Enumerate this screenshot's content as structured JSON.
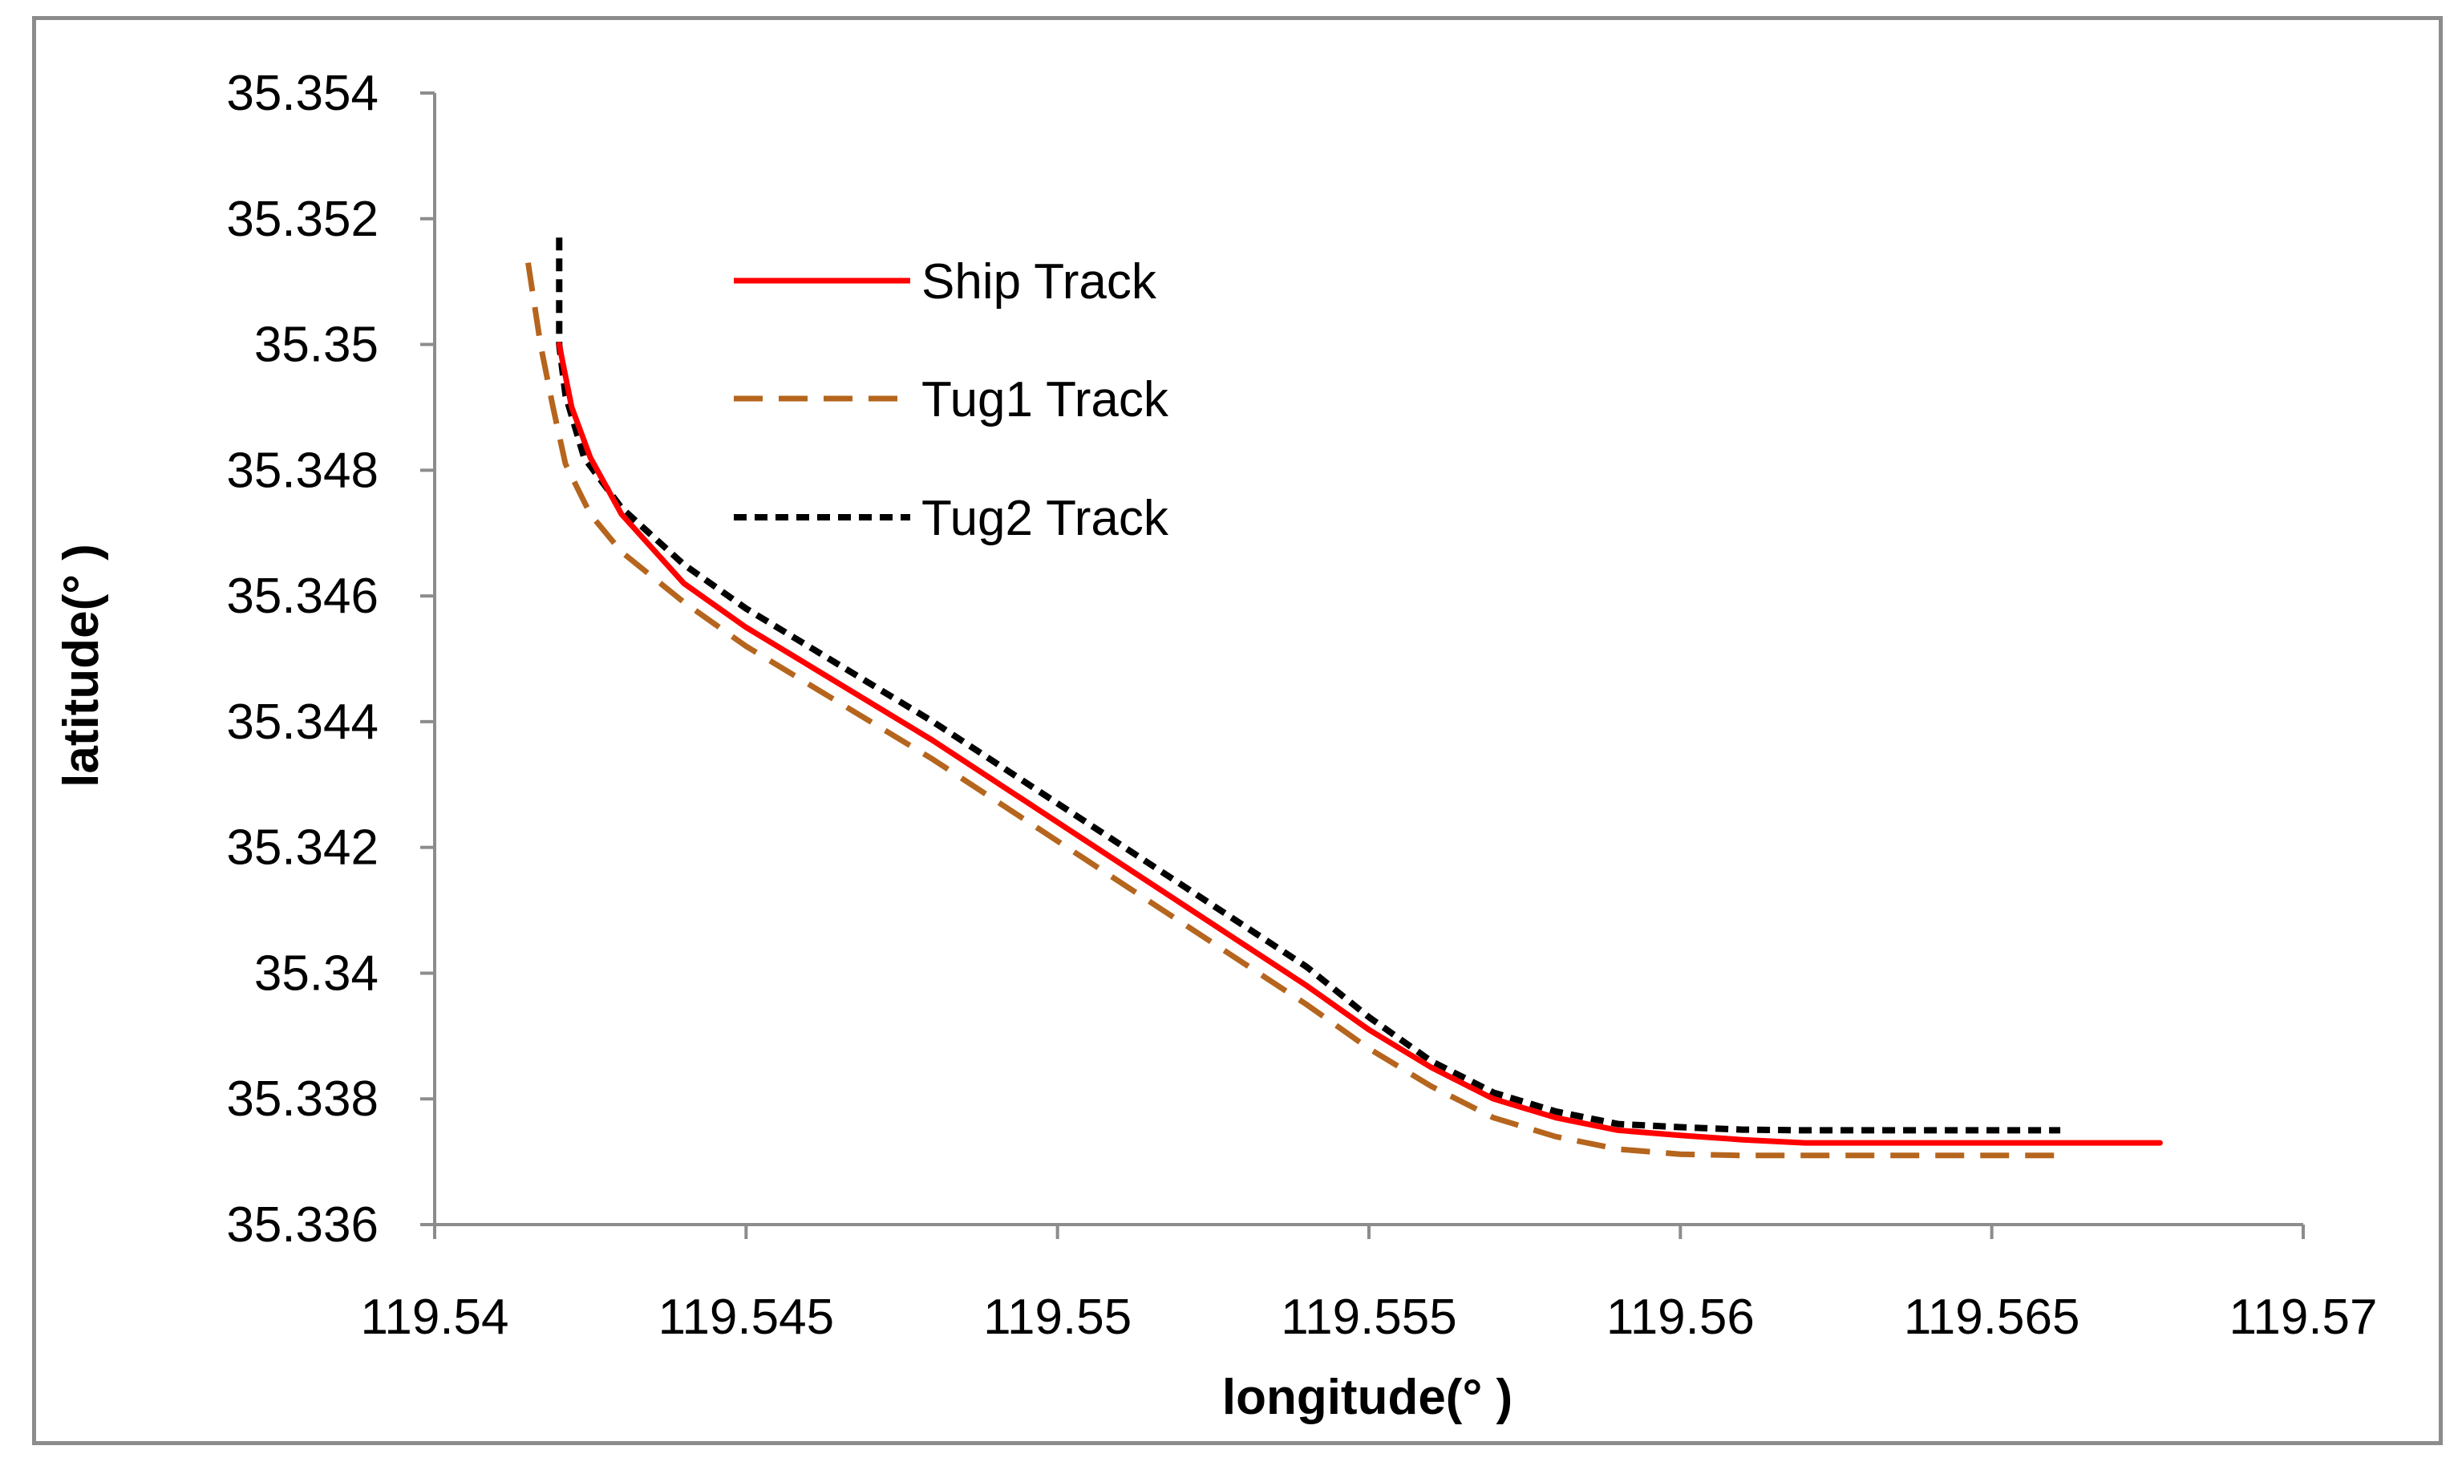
{
  "chart_data": {
    "type": "line",
    "title": "",
    "xlabel": "longitude(°   )",
    "ylabel": "latitude(°   )",
    "xlim": [
      119.54,
      119.57
    ],
    "ylim": [
      35.336,
      35.354
    ],
    "x_ticks": [
      "119.54",
      "119.545",
      "119.55",
      "119.555",
      "119.56",
      "119.565",
      "119.57"
    ],
    "y_ticks": [
      "35.354",
      "35.352",
      "35.35",
      "35.348",
      "35.346",
      "35.344",
      "35.342",
      "35.34",
      "35.338",
      "35.336"
    ],
    "grid": false,
    "legend_position": "top-left",
    "series": [
      {
        "name": "Ship Track",
        "color": "#ff0000",
        "style": "solid",
        "x": [
          119.542,
          119.5422,
          119.5425,
          119.543,
          119.544,
          119.545,
          119.546,
          119.548,
          119.55,
          119.552,
          119.554,
          119.555,
          119.556,
          119.557,
          119.558,
          119.559,
          119.56,
          119.561,
          119.562,
          119.563,
          119.565,
          119.567,
          119.5677
        ],
        "y": [
          35.35,
          35.349,
          35.3482,
          35.3473,
          35.3462,
          35.3455,
          35.3449,
          35.3437,
          35.3424,
          35.3411,
          35.3398,
          35.3391,
          35.3385,
          35.338,
          35.3377,
          35.3375,
          35.33742,
          35.33735,
          35.3373,
          35.3373,
          35.3373,
          35.3373,
          35.3373
        ]
      },
      {
        "name": "Tug1 Track",
        "color": "#b5651d",
        "style": "dashed",
        "x": [
          119.5415,
          119.5417,
          119.5419,
          119.5421,
          119.5425,
          119.543,
          119.544,
          119.545,
          119.546,
          119.548,
          119.55,
          119.552,
          119.554,
          119.555,
          119.556,
          119.557,
          119.558,
          119.559,
          119.56,
          119.561,
          119.562,
          119.564,
          119.566,
          119.5661
        ],
        "y": [
          35.3513,
          35.35,
          35.349,
          35.3481,
          35.3473,
          35.3467,
          35.3459,
          35.3452,
          35.3446,
          35.3434,
          35.3421,
          35.3408,
          35.3395,
          35.3388,
          35.3382,
          35.3377,
          35.3374,
          35.3372,
          35.33712,
          35.3371,
          35.3371,
          35.3371,
          35.3371,
          35.3371
        ]
      },
      {
        "name": "Tug2 Track",
        "color": "#000000",
        "style": "dotted",
        "x": [
          119.542,
          119.542,
          119.542,
          119.5421,
          119.5424,
          119.543,
          119.544,
          119.545,
          119.546,
          119.548,
          119.55,
          119.552,
          119.554,
          119.555,
          119.556,
          119.557,
          119.558,
          119.559,
          119.56,
          119.561,
          119.562,
          119.564,
          119.566,
          119.5661
        ],
        "y": [
          35.3517,
          35.3508,
          35.35,
          35.3492,
          35.3482,
          35.3474,
          35.3465,
          35.3458,
          35.3452,
          35.344,
          35.3427,
          35.3414,
          35.3401,
          35.3393,
          35.3386,
          35.3381,
          35.3378,
          35.3376,
          35.33755,
          35.33751,
          35.3375,
          35.3375,
          35.3375,
          35.3375
        ]
      }
    ]
  }
}
